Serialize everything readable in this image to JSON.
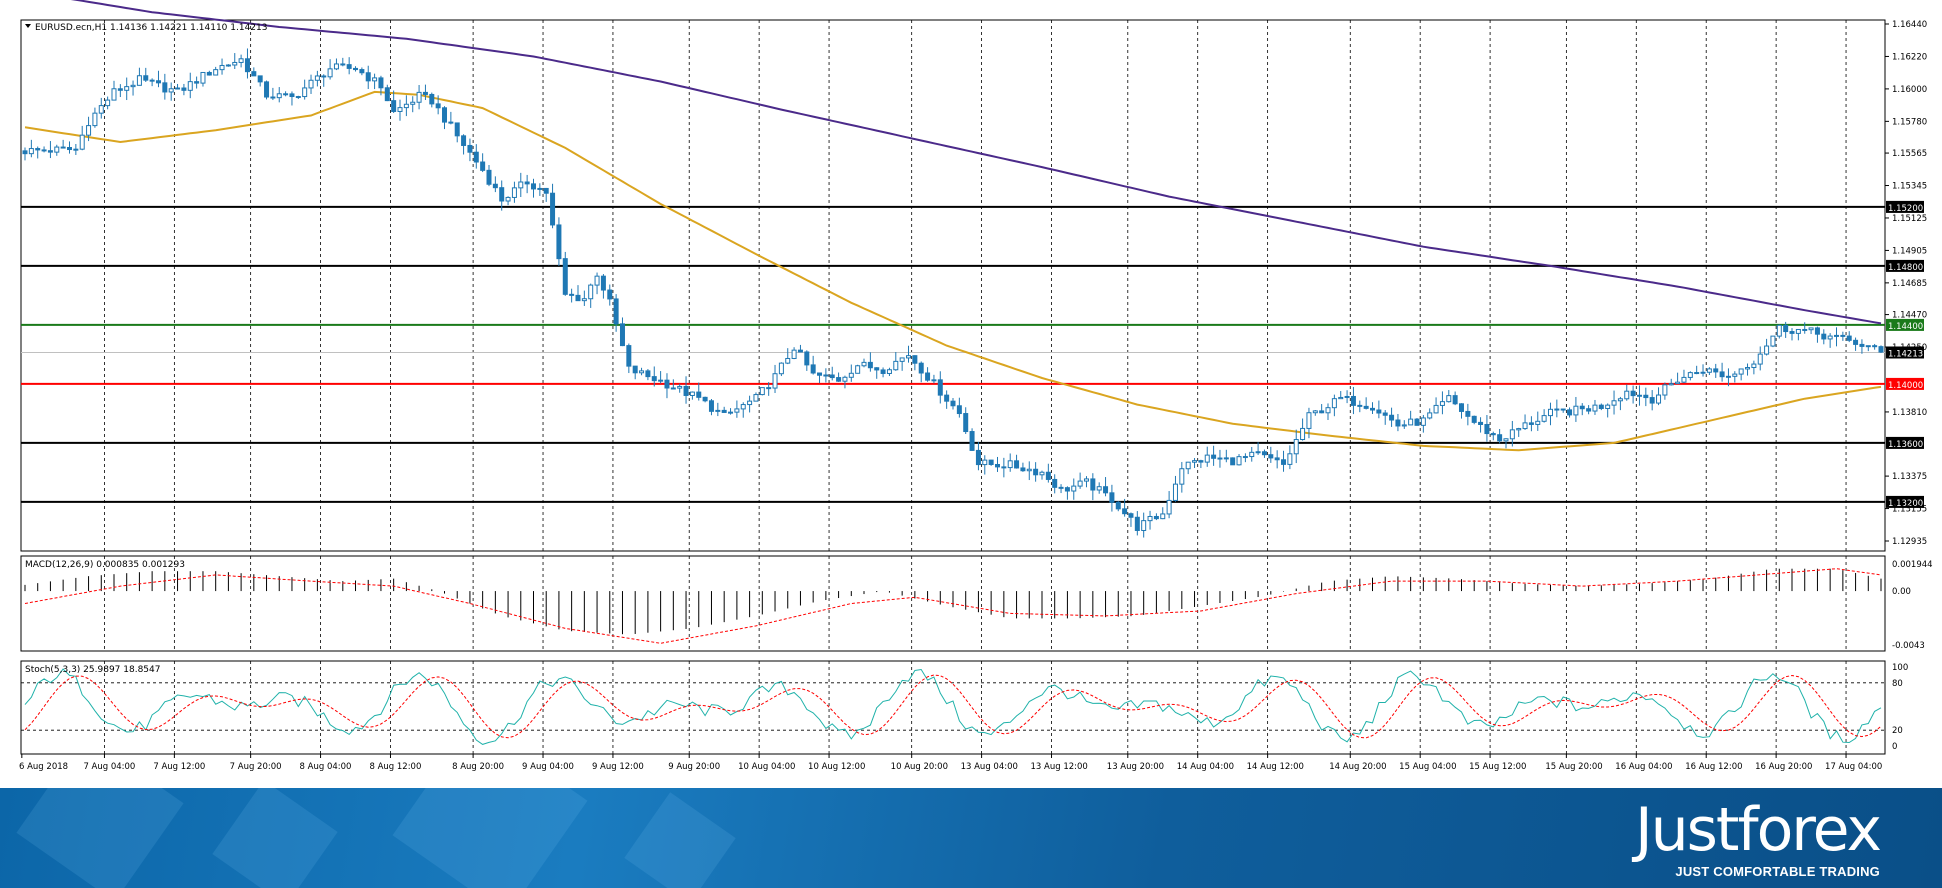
{
  "chart_data": {
    "type": "candlestick",
    "symbol_info": "EURUSD.ecn,H1  1.14136 1.14221 1.14110 1.14213",
    "bar_count": 186,
    "time_labels": [
      {
        "bar": 0,
        "text": "6 Aug 2018"
      },
      {
        "bar": 8,
        "text": "7 Aug 04:00"
      },
      {
        "bar": 15,
        "text": "7 Aug 12:00"
      },
      {
        "bar": 23,
        "text": "7 Aug 20:00"
      },
      {
        "bar": 30,
        "text": "8 Aug 04:00"
      },
      {
        "bar": 37,
        "text": "8 Aug 12:00"
      },
      {
        "bar": 45,
        "text": "8 Aug 20:00"
      },
      {
        "bar": 52,
        "text": "9 Aug 04:00"
      },
      {
        "bar": 59,
        "text": "9 Aug 12:00"
      },
      {
        "bar": 67,
        "text": "9 Aug 20:00"
      },
      {
        "bar": 74,
        "text": "10 Aug 04:00"
      },
      {
        "bar": 81,
        "text": "10 Aug 12:00"
      },
      {
        "bar": 89,
        "text": "10 Aug 20:00"
      },
      {
        "bar": 96,
        "text": "13 Aug 04:00"
      },
      {
        "bar": 103,
        "text": "13 Aug 12:00"
      },
      {
        "bar": 111,
        "text": "13 Aug 20:00"
      },
      {
        "bar": 118,
        "text": "14 Aug 04:00"
      },
      {
        "bar": 125,
        "text": "14 Aug 12:00"
      },
      {
        "bar": 133,
        "text": "14 Aug 20:00"
      },
      {
        "bar": 140,
        "text": "15 Aug 04:00"
      },
      {
        "bar": 147,
        "text": "15 Aug 12:00"
      },
      {
        "bar": 155,
        "text": "15 Aug 20:00"
      },
      {
        "bar": 162,
        "text": "16 Aug 04:00"
      },
      {
        "bar": 169,
        "text": "16 Aug 12:00"
      },
      {
        "bar": 176,
        "text": "16 Aug 20:00"
      },
      {
        "bar": 183,
        "text": "17 Aug 04:00"
      }
    ],
    "price_ticks": [
      "1.16440",
      "1.16220",
      "1.16000",
      "1.15780",
      "1.15565",
      "1.15345",
      "1.15125",
      "1.14905",
      "1.14685",
      "1.14470",
      "1.14250",
      "1.13810",
      "1.13375",
      "1.13155",
      "1.12935"
    ],
    "price_range": [
      1.12935,
      1.1644
    ],
    "levels": [
      {
        "price": 1.152,
        "label": "1.15200",
        "color": "#000000"
      },
      {
        "price": 1.148,
        "label": "1.14800",
        "color": "#000000"
      },
      {
        "price": 1.144,
        "label": "1.14400",
        "color": "#1a7a1a"
      },
      {
        "price": 1.14,
        "label": "1.14000",
        "color": "#ff0000"
      },
      {
        "price": 1.136,
        "label": "1.13600",
        "color": "#000000"
      },
      {
        "price": 1.132,
        "label": "1.13200",
        "color": "#000000"
      }
    ],
    "current_price": {
      "price": 1.14213,
      "label": "1.14213"
    },
    "close_path": [
      [
        0,
        1.1558
      ],
      [
        8,
        1.1559
      ],
      [
        10,
        1.1578
      ],
      [
        14,
        1.1598
      ],
      [
        18,
        1.1606
      ],
      [
        24,
        1.1598
      ],
      [
        30,
        1.1614
      ],
      [
        34,
        1.162
      ],
      [
        38,
        1.1596
      ],
      [
        42,
        1.1594
      ],
      [
        48,
        1.1614
      ],
      [
        52,
        1.1614
      ],
      [
        56,
        1.1602
      ],
      [
        58,
        1.1584
      ],
      [
        62,
        1.1595
      ],
      [
        64,
        1.1592
      ],
      [
        68,
        1.1568
      ],
      [
        72,
        1.1545
      ],
      [
        75,
        1.1525
      ],
      [
        79,
        1.1537
      ],
      [
        82,
        1.153
      ],
      [
        85,
        1.146
      ],
      [
        88,
        1.1458
      ],
      [
        90,
        1.1475
      ],
      [
        92,
        1.1455
      ],
      [
        95,
        1.141
      ],
      [
        100,
        1.1402
      ],
      [
        106,
        1.139
      ],
      [
        110,
        1.1378
      ],
      [
        115,
        1.139
      ],
      [
        118,
        1.1405
      ],
      [
        121,
        1.1425
      ],
      [
        124,
        1.1406
      ],
      [
        128,
        1.1403
      ],
      [
        131,
        1.1413
      ],
      [
        135,
        1.141
      ],
      [
        139,
        1.142
      ],
      [
        143,
        1.14
      ],
      [
        147,
        1.138
      ],
      [
        150,
        1.1346
      ],
      [
        155,
        1.1345
      ],
      [
        160,
        1.134
      ],
      [
        163,
        1.1328
      ],
      [
        167,
        1.1333
      ],
      [
        171,
        1.1322
      ],
      [
        175,
        1.1303
      ],
      [
        179,
        1.1312
      ],
      [
        182,
        1.1344
      ],
      [
        186,
        1.135
      ],
      [
        190,
        1.1348
      ],
      [
        194,
        1.1352
      ],
      [
        198,
        1.1345
      ],
      [
        202,
        1.1378
      ],
      [
        207,
        1.139
      ],
      [
        212,
        1.1385
      ],
      [
        216,
        1.1372
      ],
      [
        220,
        1.1375
      ],
      [
        224,
        1.139
      ],
      [
        228,
        1.1374
      ],
      [
        232,
        1.1362
      ],
      [
        236,
        1.1372
      ],
      [
        240,
        1.138
      ],
      [
        244,
        1.1382
      ],
      [
        248,
        1.1385
      ],
      [
        252,
        1.1395
      ],
      [
        256,
        1.139
      ],
      [
        260,
        1.1403
      ],
      [
        264,
        1.141
      ],
      [
        268,
        1.1405
      ],
      [
        272,
        1.1416
      ],
      [
        276,
        1.1438
      ],
      [
        280,
        1.1436
      ],
      [
        284,
        1.1432
      ],
      [
        288,
        1.1428
      ],
      [
        290,
        1.1425
      ],
      [
        292,
        1.1421
      ]
    ],
    "ma_fast": [
      [
        0,
        1.1574
      ],
      [
        15,
        1.1564
      ],
      [
        30,
        1.1572
      ],
      [
        45,
        1.1582
      ],
      [
        55,
        1.1598
      ],
      [
        62,
        1.1596
      ],
      [
        72,
        1.1587
      ],
      [
        85,
        1.156
      ],
      [
        100,
        1.1522
      ],
      [
        115,
        1.1488
      ],
      [
        130,
        1.1455
      ],
      [
        145,
        1.1426
      ],
      [
        160,
        1.1404
      ],
      [
        175,
        1.1386
      ],
      [
        190,
        1.1373
      ],
      [
        205,
        1.1365
      ],
      [
        220,
        1.1358
      ],
      [
        235,
        1.1355
      ],
      [
        250,
        1.136
      ],
      [
        265,
        1.1375
      ],
      [
        280,
        1.139
      ],
      [
        292,
        1.1398
      ]
    ],
    "ma_slow": [
      [
        0,
        1.1666
      ],
      [
        20,
        1.1652
      ],
      [
        40,
        1.1642
      ],
      [
        60,
        1.1634
      ],
      [
        80,
        1.1622
      ],
      [
        100,
        1.1605
      ],
      [
        120,
        1.1585
      ],
      [
        140,
        1.1566
      ],
      [
        160,
        1.1547
      ],
      [
        180,
        1.1527
      ],
      [
        200,
        1.151
      ],
      [
        220,
        1.1493
      ],
      [
        240,
        1.148
      ],
      [
        260,
        1.1466
      ],
      [
        280,
        1.145
      ],
      [
        292,
        1.1441
      ]
    ],
    "macd": {
      "label": "MACD(12,26,9) 0.000835 0.001293",
      "ticks": [
        "0.001944",
        "0.00",
        "-0.0043"
      ],
      "range": [
        -0.0045,
        0.0025
      ],
      "hist_path": [
        [
          0,
          0.0005
        ],
        [
          10,
          0.0012
        ],
        [
          20,
          0.0016
        ],
        [
          30,
          0.0016
        ],
        [
          40,
          0.0012
        ],
        [
          50,
          0.0008
        ],
        [
          58,
          0.001
        ],
        [
          65,
          0.0
        ],
        [
          75,
          -0.002
        ],
        [
          85,
          -0.0032
        ],
        [
          95,
          -0.0035
        ],
        [
          105,
          -0.003
        ],
        [
          115,
          -0.002
        ],
        [
          125,
          -0.0008
        ],
        [
          135,
          0.0
        ],
        [
          145,
          -0.0012
        ],
        [
          155,
          -0.0022
        ],
        [
          165,
          -0.0022
        ],
        [
          175,
          -0.002
        ],
        [
          185,
          -0.0012
        ],
        [
          195,
          -0.0004
        ],
        [
          205,
          0.0008
        ],
        [
          215,
          0.0012
        ],
        [
          225,
          0.001
        ],
        [
          235,
          0.0006
        ],
        [
          245,
          0.0004
        ],
        [
          255,
          0.0006
        ],
        [
          265,
          0.001
        ],
        [
          275,
          0.0018
        ],
        [
          285,
          0.0018
        ],
        [
          292,
          0.001
        ]
      ],
      "signal_path": [
        [
          0,
          -0.001
        ],
        [
          15,
          0.0004
        ],
        [
          30,
          0.0013
        ],
        [
          45,
          0.0008
        ],
        [
          58,
          0.0004
        ],
        [
          70,
          -0.001
        ],
        [
          85,
          -0.003
        ],
        [
          100,
          -0.0042
        ],
        [
          115,
          -0.0028
        ],
        [
          130,
          -0.001
        ],
        [
          140,
          -0.0005
        ],
        [
          155,
          -0.0018
        ],
        [
          170,
          -0.002
        ],
        [
          185,
          -0.0016
        ],
        [
          200,
          -0.0002
        ],
        [
          215,
          0.0008
        ],
        [
          230,
          0.0008
        ],
        [
          245,
          0.0004
        ],
        [
          260,
          0.0008
        ],
        [
          275,
          0.0014
        ],
        [
          285,
          0.0018
        ],
        [
          292,
          0.0013
        ]
      ]
    },
    "stoch": {
      "label": "Stoch(5,3,3) 25.9897 18.8547",
      "ticks": [
        "100",
        "80",
        "20",
        "0"
      ],
      "levels": [
        80,
        20
      ],
      "main_color": "#20b2aa",
      "signal_color": "#ff0000"
    },
    "colors": {
      "candle": "#1f78b4",
      "ma_fast": "#daa520",
      "ma_slow": "#4b2a8a",
      "grid": "#000000",
      "frame": "#000000",
      "macd_hist": "#000000",
      "macd_signal": "#ff0000"
    }
  },
  "branding": {
    "logo": "Justforex",
    "slogan": "JUST COMFORTABLE TRADING"
  }
}
